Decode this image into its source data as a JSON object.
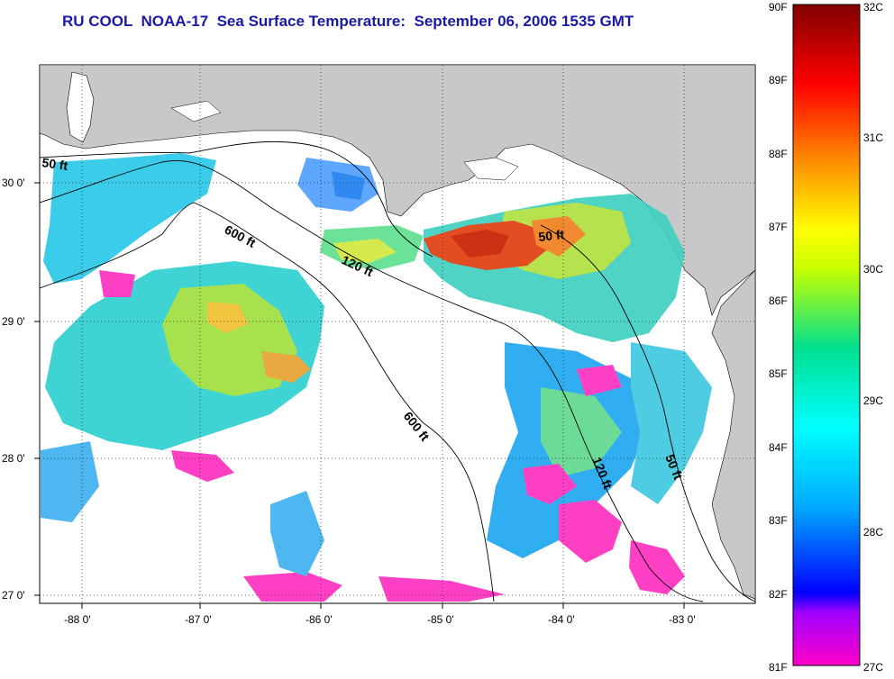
{
  "title": "RU COOL  NOAA-17  Sea Surface Temperature:  September 06, 2006 1535 GMT",
  "map": {
    "lon_ticks": [
      "-88 0'",
      "-87 0'",
      "-86 0'",
      "-85 0'",
      "-84 0'",
      "-83 0'"
    ],
    "lat_ticks": [
      "30 0'",
      "29 0'",
      "28 0'",
      "27 0'"
    ],
    "contour_labels": [
      "50 ft",
      "600 ft",
      "120 ft",
      "50 ft",
      "600 ft",
      "120 ft",
      "50 ft"
    ],
    "colors": {
      "land": "#c8c8c8",
      "water_nodata": "#ffffff",
      "title": "#1a1aa8"
    }
  },
  "colorbar": {
    "fahrenheit": [
      "90F",
      "89F",
      "88F",
      "87F",
      "86F",
      "85F",
      "84F",
      "83F",
      "82F",
      "81F"
    ],
    "celsius": [
      "32C",
      "31C",
      "30C",
      "29C",
      "28C",
      "27C"
    ]
  }
}
